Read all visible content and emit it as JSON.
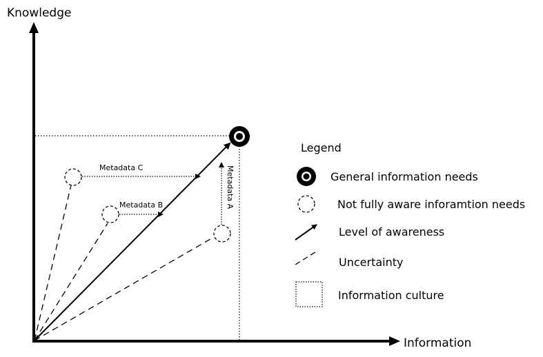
{
  "axes": {
    "y_label": "Knowledge",
    "x_label": "Information"
  },
  "diagram": {
    "metadata_c": "Metadata C",
    "metadata_b": "Metadata B",
    "metadata_a": "Metadata A"
  },
  "legend": {
    "title": "Legend",
    "items": [
      {
        "icon": "target-circle-icon",
        "label": "General information needs"
      },
      {
        "icon": "dashed-circle-icon",
        "label": "Not fully aware inforamtion needs"
      },
      {
        "icon": "solid-arrow-icon",
        "label": "Level of awareness"
      },
      {
        "icon": "dashed-line-icon",
        "label": "Uncertainty"
      },
      {
        "icon": "dotted-square-icon",
        "label": "Information culture"
      }
    ]
  }
}
